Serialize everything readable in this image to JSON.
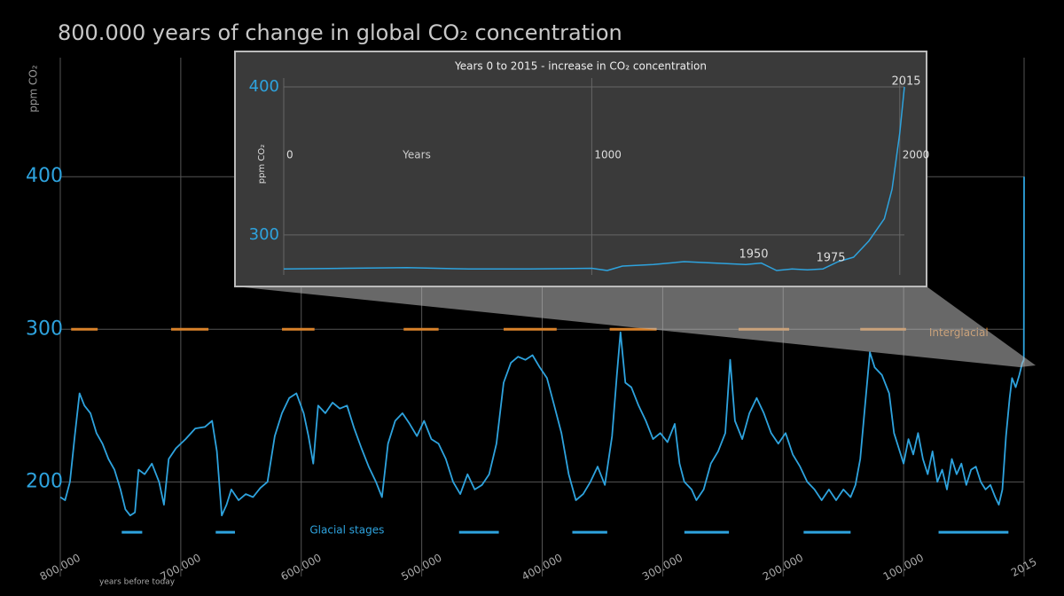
{
  "chart_data": [
    {
      "type": "line",
      "title": "800.000 years of change in global CO₂ concentration",
      "x_label": "years before today",
      "y_label": "ppm CO₂",
      "x": [
        800000,
        796000,
        792000,
        788000,
        784000,
        780000,
        775000,
        770000,
        765000,
        760000,
        755000,
        750000,
        746000,
        742000,
        738000,
        735000,
        730000,
        724000,
        718000,
        714000,
        710000,
        704000,
        696000,
        688000,
        680000,
        674000,
        670000,
        666000,
        662000,
        658000,
        652000,
        646000,
        640000,
        634000,
        628000,
        622000,
        616000,
        610000,
        604000,
        598000,
        594000,
        590000,
        586000,
        580000,
        574000,
        568000,
        562000,
        556000,
        550000,
        544000,
        538000,
        533000,
        528000,
        522000,
        516000,
        510000,
        504000,
        498000,
        492000,
        486000,
        480000,
        474000,
        468000,
        462000,
        456000,
        450000,
        444000,
        438000,
        432000,
        426000,
        420000,
        414000,
        408000,
        402000,
        396000,
        390000,
        384000,
        378000,
        372000,
        366000,
        360000,
        354000,
        348000,
        342000,
        338000,
        335000,
        331000,
        326000,
        320000,
        314000,
        308000,
        302000,
        296000,
        290000,
        286000,
        282000,
        276000,
        272000,
        266000,
        260000,
        254000,
        248000,
        244000,
        240000,
        234000,
        228000,
        222000,
        216000,
        210000,
        204000,
        198000,
        192000,
        186000,
        180000,
        174000,
        168000,
        162000,
        156000,
        150000,
        144000,
        140000,
        136000,
        132000,
        128000,
        124000,
        118000,
        112000,
        108000,
        104000,
        100000,
        96000,
        92000,
        88000,
        84000,
        80000,
        76000,
        72000,
        68000,
        64000,
        60000,
        56000,
        52000,
        48000,
        44000,
        40000,
        36000,
        32000,
        28000,
        24000,
        21000,
        18000,
        15000,
        12000,
        10000,
        7000,
        4000,
        1500,
        200,
        0
      ],
      "series": [
        {
          "color": "#2ea3de",
          "values": [
            190,
            188,
            200,
            230,
            258,
            250,
            245,
            232,
            225,
            215,
            208,
            195,
            182,
            178,
            180,
            208,
            205,
            212,
            200,
            185,
            215,
            222,
            228,
            235,
            236,
            240,
            220,
            178,
            185,
            195,
            188,
            192,
            190,
            196,
            200,
            230,
            245,
            255,
            258,
            245,
            230,
            212,
            250,
            245,
            252,
            248,
            250,
            235,
            222,
            210,
            200,
            190,
            225,
            240,
            245,
            238,
            230,
            240,
            228,
            225,
            215,
            200,
            192,
            205,
            195,
            198,
            205,
            225,
            265,
            278,
            282,
            280,
            283,
            275,
            268,
            250,
            232,
            205,
            188,
            192,
            200,
            210,
            198,
            230,
            270,
            298,
            265,
            262,
            250,
            240,
            228,
            232,
            226,
            238,
            212,
            200,
            195,
            188,
            195,
            212,
            220,
            232,
            280,
            240,
            228,
            245,
            255,
            245,
            232,
            225,
            232,
            218,
            210,
            200,
            195,
            188,
            195,
            188,
            195,
            190,
            198,
            215,
            250,
            285,
            275,
            270,
            258,
            232,
            222,
            212,
            228,
            218,
            232,
            215,
            205,
            220,
            200,
            208,
            195,
            215,
            205,
            212,
            198,
            208,
            210,
            200,
            195,
            198,
            190,
            185,
            195,
            230,
            255,
            268,
            262,
            270,
            278,
            280,
            400
          ]
        }
      ],
      "xlim": [
        800000,
        0
      ],
      "xticks": [
        {
          "value": 800000,
          "label": "800.000"
        },
        {
          "value": 700000,
          "label": "700.000"
        },
        {
          "value": 600000,
          "label": "600.000"
        },
        {
          "value": 500000,
          "label": "500.000"
        },
        {
          "value": 400000,
          "label": "400.000"
        },
        {
          "value": 300000,
          "label": "300.000"
        },
        {
          "value": 200000,
          "label": "200.000"
        },
        {
          "value": 100000,
          "label": "100.000"
        },
        {
          "value": 0,
          "label": "2015"
        }
      ],
      "ylim": [
        138,
        478
      ],
      "yticks": [
        200,
        300,
        400
      ],
      "grid": true,
      "ranges": [
        {
          "name": "Interglacial",
          "color": "#d9822b",
          "level": 300,
          "spans": [
            [
              791000,
              769000
            ],
            [
              708000,
              677000
            ],
            [
              616000,
              589000
            ],
            [
              515000,
              486000
            ],
            [
              432000,
              388000
            ],
            [
              344000,
              305000
            ],
            [
              237000,
              195000
            ],
            [
              136000,
              98000
            ]
          ]
        },
        {
          "name": "Glacial stages",
          "color": "#2ea3de",
          "level": 167,
          "spans": [
            [
              749000,
              732000
            ],
            [
              671000,
              655000
            ],
            [
              469000,
              436000
            ],
            [
              375000,
              346000
            ],
            [
              282000,
              245000
            ],
            [
              183000,
              144000
            ],
            [
              71000,
              13000
            ]
          ]
        }
      ]
    },
    {
      "type": "line",
      "title": "Years 0 to 2015 - increase in CO₂ concentration",
      "x_label": "Years",
      "y_label": "ppm CO₂",
      "x": [
        0,
        200,
        400,
        600,
        800,
        1000,
        1050,
        1100,
        1200,
        1300,
        1400,
        1500,
        1550,
        1600,
        1650,
        1700,
        1750,
        1800,
        1850,
        1900,
        1950,
        1975,
        2000,
        2015
      ],
      "series": [
        {
          "color": "#2ea3de",
          "values": [
            277,
            277.5,
            278,
            277,
            277,
            277.5,
            276,
            279,
            280,
            282,
            281,
            280,
            281,
            276,
            277,
            276.5,
            277,
            282,
            285,
            296,
            311,
            331,
            369,
            400
          ]
        }
      ],
      "xlim": [
        0,
        2015
      ],
      "xticks": [
        0,
        1000,
        2000
      ],
      "ylim": [
        273,
        406
      ],
      "yticks": [
        300,
        400
      ],
      "grid": true,
      "annotations": [
        {
          "text": "1950"
        },
        {
          "text": "1975"
        },
        {
          "text": "2015"
        }
      ]
    }
  ]
}
